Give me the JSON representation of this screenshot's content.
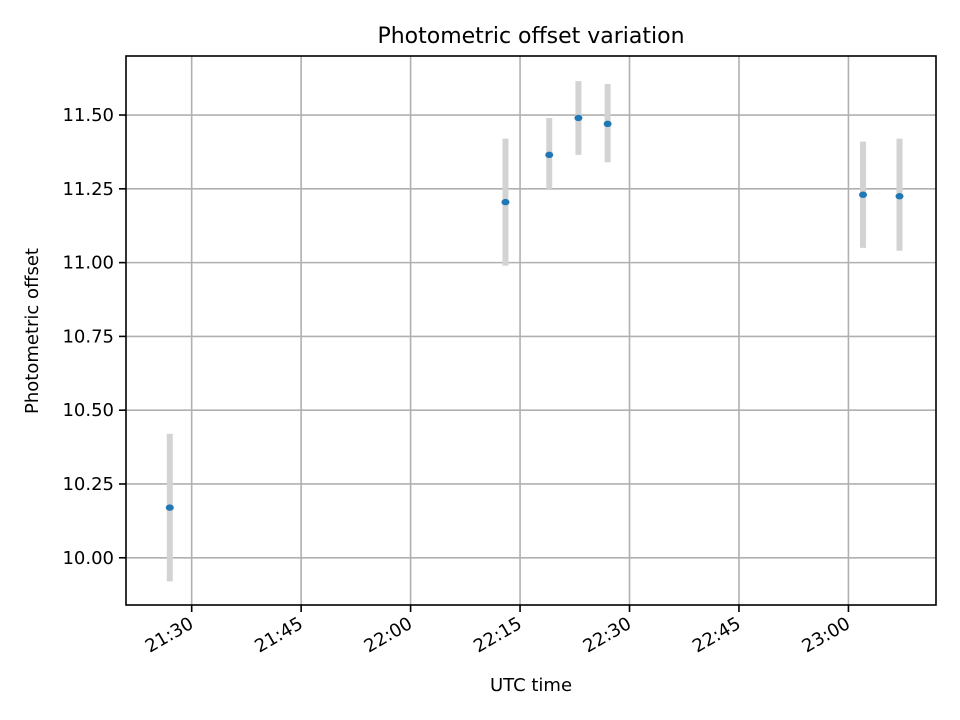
{
  "chart_data": {
    "type": "scatter",
    "title": "Photometric offset variation",
    "xlabel": "UTC time",
    "ylabel": "Photometric offset",
    "x_ticks": [
      "21:30",
      "21:45",
      "22:00",
      "22:15",
      "22:30",
      "22:45",
      "23:00"
    ],
    "y_ticks": [
      "10.00",
      "10.25",
      "10.50",
      "10.75",
      "11.00",
      "11.25",
      "11.50"
    ],
    "xlim": [
      "21:21",
      "23:12"
    ],
    "ylim": [
      9.84,
      11.7
    ],
    "grid": true,
    "errorbar_color": "#d3d3d3",
    "marker_color": "#1f77b4",
    "points": [
      {
        "x": "21:27",
        "y": 10.17,
        "y_low": 9.92,
        "y_high": 10.42
      },
      {
        "x": "22:13",
        "y": 11.205,
        "y_low": 10.99,
        "y_high": 11.42
      },
      {
        "x": "22:19",
        "y": 11.365,
        "y_low": 11.25,
        "y_high": 11.49
      },
      {
        "x": "22:23",
        "y": 11.49,
        "y_low": 11.365,
        "y_high": 11.615
      },
      {
        "x": "22:27",
        "y": 11.47,
        "y_low": 11.34,
        "y_high": 11.605
      },
      {
        "x": "23:02",
        "y": 11.23,
        "y_low": 11.05,
        "y_high": 11.41
      },
      {
        "x": "23:07",
        "y": 11.225,
        "y_low": 11.04,
        "y_high": 11.42
      }
    ]
  }
}
